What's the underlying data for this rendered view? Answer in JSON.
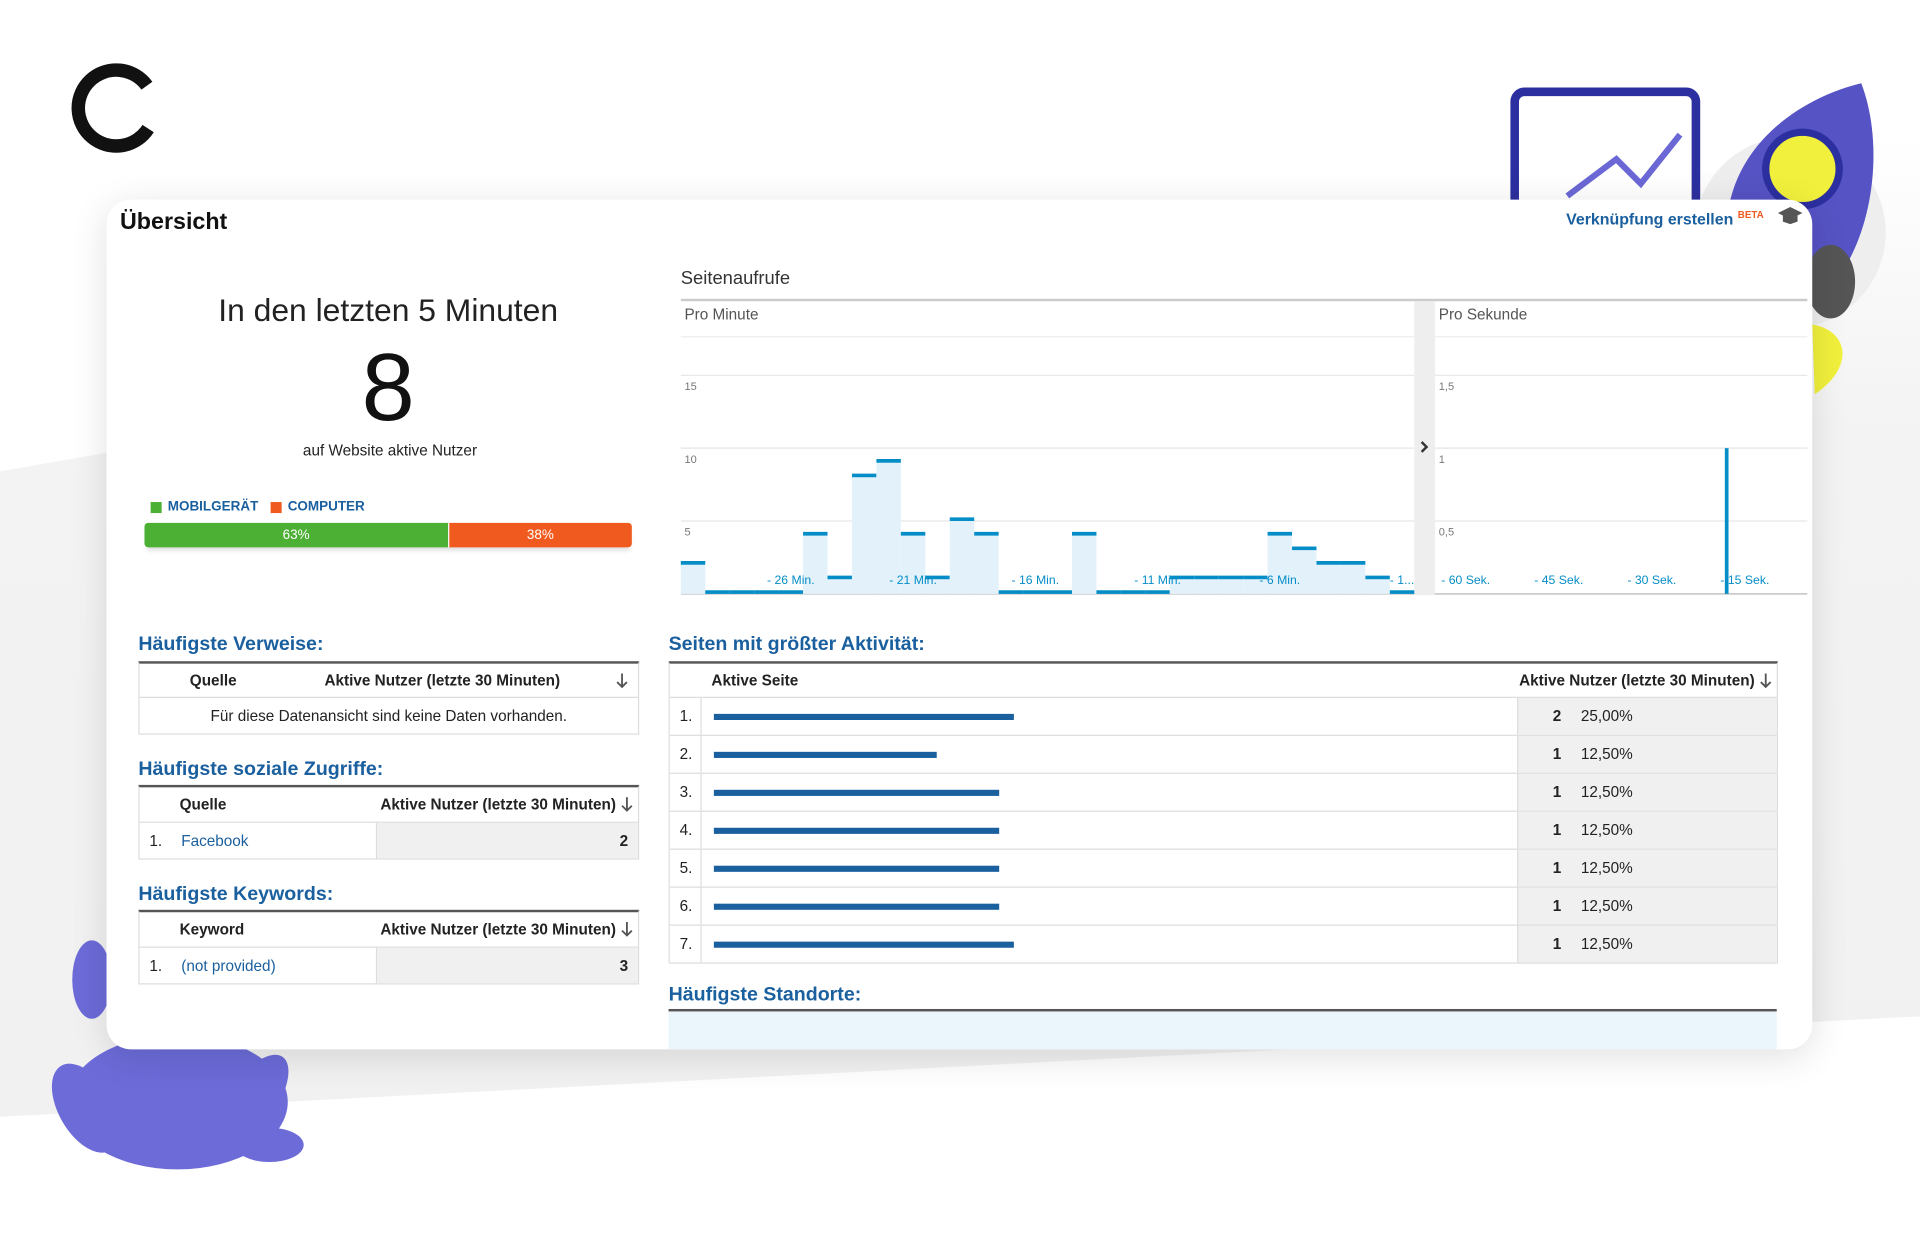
{
  "header": {
    "title": "Übersicht",
    "link": "Verknüpfung erstellen",
    "badge": "BETA"
  },
  "summary": {
    "heading": "In den letzten 5 Minuten",
    "count": 8,
    "caption": "auf Website aktive Nutzer",
    "devices": [
      {
        "name": "MOBILGERÄT",
        "color": "#4cb035",
        "share": 63,
        "label": "63%"
      },
      {
        "name": "COMPUTER",
        "color": "#f05a1e",
        "share": 38,
        "label": "38%"
      }
    ]
  },
  "pageviews": {
    "title": "Seitenaufrufe",
    "per_minute": {
      "type": "bar",
      "title": "Pro Minute",
      "color": "#058dc7",
      "x": [
        -30,
        -29,
        -28,
        -27,
        -26,
        -25,
        -24,
        -23,
        -22,
        -21,
        -20,
        -19,
        -18,
        -17,
        -16,
        -15,
        -14,
        -13,
        -12,
        -11,
        -10,
        -9,
        -8,
        -7,
        -6,
        -5,
        -4,
        -3,
        -2,
        -1
      ],
      "values": [
        2,
        0,
        0,
        0,
        0,
        4,
        1,
        8,
        9,
        4,
        1,
        5,
        4,
        0,
        0,
        0,
        4,
        0,
        0,
        0,
        1,
        1,
        1,
        1,
        4,
        3,
        2,
        2,
        1,
        0
      ],
      "xlim": [
        -30.5,
        -0.5
      ],
      "xticks": [
        {
          "value": -26,
          "label": "- 26 Min."
        },
        {
          "value": -21,
          "label": "- 21 Min."
        },
        {
          "value": -16,
          "label": "- 16 Min."
        },
        {
          "value": -11,
          "label": "- 11 Min."
        },
        {
          "value": -6,
          "label": "- 6 Min."
        },
        {
          "value": -1,
          "label": "- 1..."
        }
      ],
      "ylim": [
        0,
        20
      ],
      "yticks": [
        5,
        10,
        15
      ]
    },
    "per_second": {
      "type": "bar",
      "title": "Pro Sekunde",
      "color": "#058dc7",
      "x": [
        -13
      ],
      "values": [
        1
      ],
      "xlim": [
        -60,
        0
      ],
      "xticks": [
        {
          "value": -60,
          "label": "- 60 Sek."
        },
        {
          "value": -45,
          "label": "- 45 Sek."
        },
        {
          "value": -30,
          "label": "- 30 Sek."
        },
        {
          "value": -15,
          "label": "- 15 Sek."
        }
      ],
      "ylim": [
        0,
        2
      ],
      "yticks": [
        {
          "value": 0.5,
          "label": "0,5"
        },
        1,
        {
          "value": 1.5,
          "label": "1,5"
        }
      ]
    }
  },
  "referrals": {
    "title": "Häufigste Verweise:",
    "columns": [
      "Quelle",
      "Aktive Nutzer (letzte 30 Minuten)"
    ],
    "empty": "Für diese Datenansicht sind keine Daten vorhanden."
  },
  "social": {
    "title": "Häufigste soziale Zugriffe:",
    "columns": [
      "Quelle",
      "Aktive Nutzer (letzte 30 Minuten)"
    ],
    "rows": [
      {
        "rank": "1.",
        "name": "Facebook",
        "users": 2
      }
    ]
  },
  "keywords": {
    "title": "Häufigste Keywords:",
    "columns": [
      "Keyword",
      "Aktive Nutzer (letzte 30 Minuten)"
    ],
    "rows": [
      {
        "rank": "1.",
        "name": "(not provided)",
        "users": 3
      }
    ]
  },
  "top_pages": {
    "title": "Seiten mit größter Aktivität:",
    "columns": [
      "Aktive Seite",
      "Aktive Nutzer (letzte 30 Minuten)"
    ],
    "rows": [
      {
        "rank": "1.",
        "users": 2,
        "share": "25,00%"
      },
      {
        "rank": "2.",
        "users": 1,
        "share": "12,50%"
      },
      {
        "rank": "3.",
        "users": 1,
        "share": "12,50%"
      },
      {
        "rank": "4.",
        "users": 1,
        "share": "12,50%"
      },
      {
        "rank": "5.",
        "users": 1,
        "share": "12,50%"
      },
      {
        "rank": "6.",
        "users": 1,
        "share": "12,50%"
      },
      {
        "rank": "7.",
        "users": 1,
        "share": "12,50%"
      }
    ]
  },
  "locations": {
    "title": "Häufigste Standorte:"
  }
}
